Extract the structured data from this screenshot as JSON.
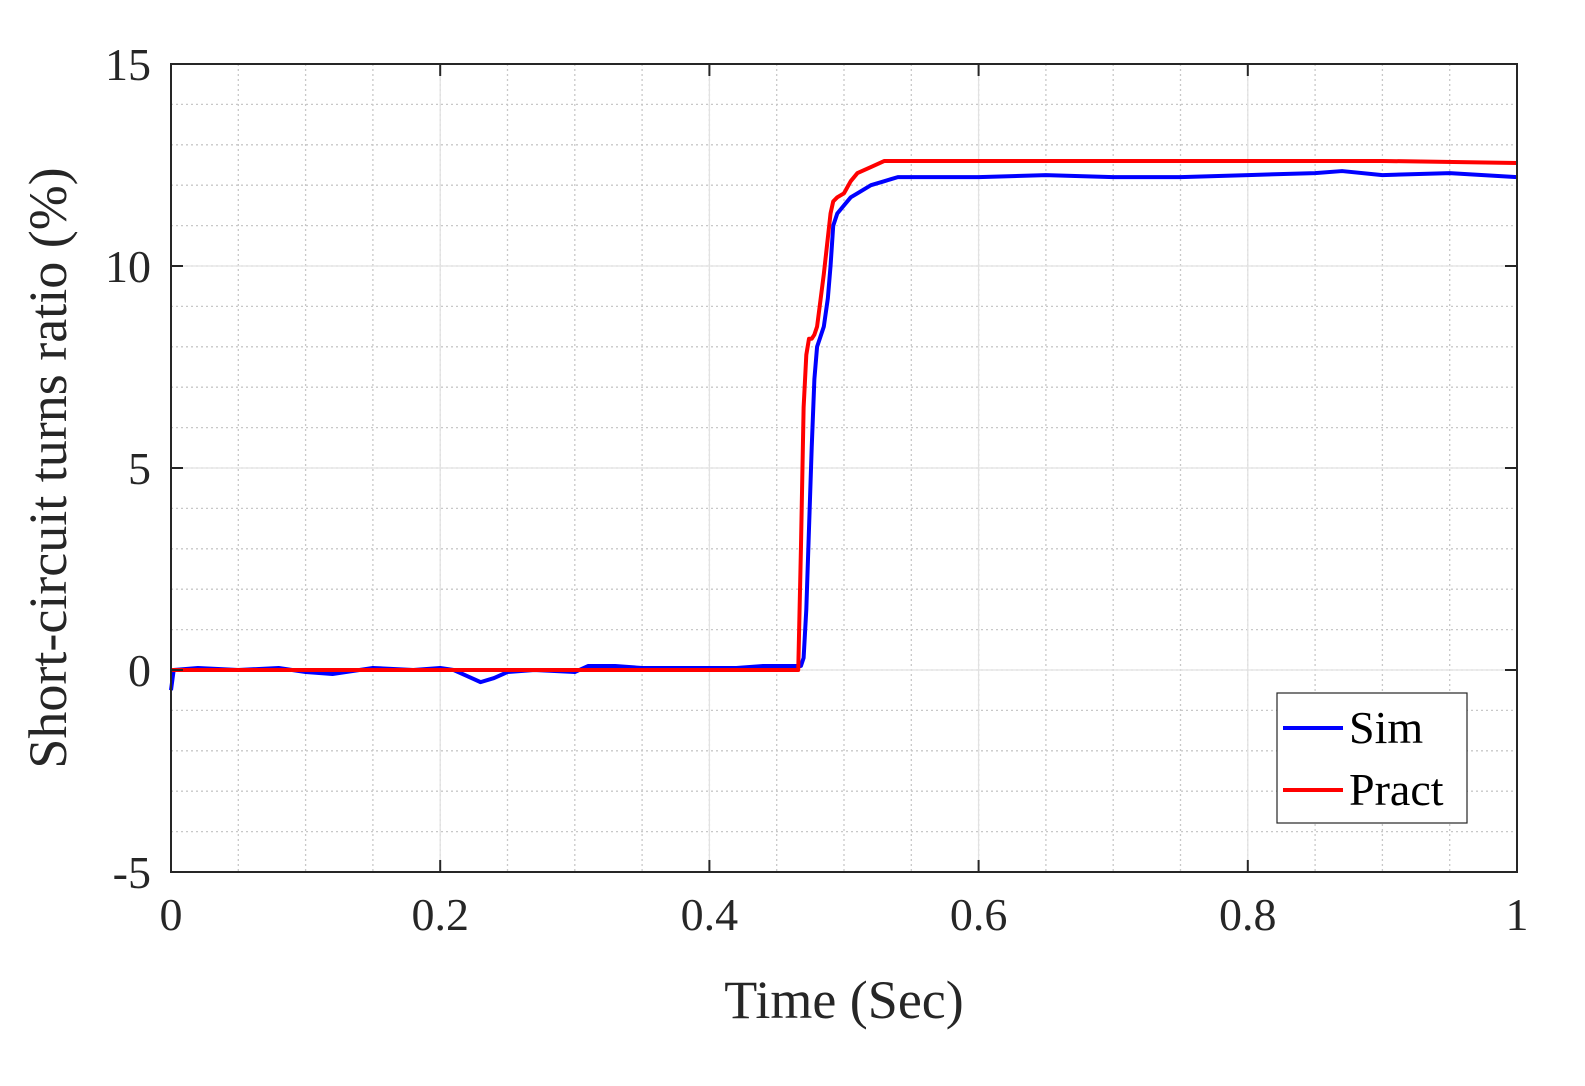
{
  "chart_data": {
    "type": "line",
    "title": "",
    "xlabel": "Time (Sec)",
    "ylabel": "Short-circuit turns ratio (%)",
    "xlim": [
      0,
      1
    ],
    "ylim": [
      -5,
      15
    ],
    "xticks": [
      0,
      0.2,
      0.4,
      0.6,
      0.8,
      1
    ],
    "xtick_labels": [
      "0",
      "0.2",
      "0.4",
      "0.6",
      "0.8",
      "1"
    ],
    "yticks": [
      -5,
      0,
      5,
      10,
      15
    ],
    "ytick_labels": [
      "-5",
      "0",
      "5",
      "10",
      "15"
    ],
    "grid": true,
    "minor_grid": true,
    "legend_position": "bottom-right",
    "series": [
      {
        "name": "Sim",
        "color": "#0000ff",
        "x": [
          0,
          0.002,
          0.02,
          0.05,
          0.08,
          0.1,
          0.12,
          0.15,
          0.18,
          0.2,
          0.21,
          0.22,
          0.23,
          0.24,
          0.25,
          0.27,
          0.3,
          0.31,
          0.33,
          0.35,
          0.38,
          0.4,
          0.42,
          0.44,
          0.46,
          0.468,
          0.47,
          0.472,
          0.474,
          0.476,
          0.478,
          0.48,
          0.482,
          0.485,
          0.488,
          0.49,
          0.492,
          0.495,
          0.5,
          0.505,
          0.51,
          0.52,
          0.53,
          0.54,
          0.55,
          0.6,
          0.65,
          0.7,
          0.75,
          0.8,
          0.85,
          0.87,
          0.9,
          0.95,
          1
        ],
        "y": [
          -0.5,
          0,
          0.05,
          0,
          0.05,
          -0.05,
          -0.1,
          0.05,
          0,
          0.05,
          0,
          -0.15,
          -0.3,
          -0.2,
          -0.05,
          0,
          -0.05,
          0.1,
          0.1,
          0.05,
          0.05,
          0.05,
          0.05,
          0.1,
          0.1,
          0.1,
          0.3,
          1.5,
          3.5,
          5.5,
          7.2,
          8.0,
          8.2,
          8.5,
          9.2,
          10.0,
          11.0,
          11.3,
          11.5,
          11.7,
          11.8,
          12.0,
          12.1,
          12.2,
          12.2,
          12.2,
          12.25,
          12.2,
          12.2,
          12.25,
          12.3,
          12.35,
          12.25,
          12.3,
          12.2
        ]
      },
      {
        "name": "Pract",
        "color": "#ff0000",
        "x": [
          0,
          0.1,
          0.2,
          0.3,
          0.4,
          0.46,
          0.466,
          0.468,
          0.47,
          0.472,
          0.474,
          0.476,
          0.478,
          0.48,
          0.485,
          0.49,
          0.492,
          0.495,
          0.5,
          0.505,
          0.51,
          0.52,
          0.53,
          0.54,
          0.55,
          0.6,
          0.7,
          0.8,
          0.9,
          1
        ],
        "y": [
          0,
          0,
          0,
          0,
          0,
          0,
          0,
          3,
          6.5,
          7.8,
          8.2,
          8.2,
          8.3,
          8.5,
          9.8,
          11.3,
          11.6,
          11.7,
          11.8,
          12.1,
          12.3,
          12.45,
          12.6,
          12.6,
          12.6,
          12.6,
          12.6,
          12.6,
          12.6,
          12.55
        ]
      }
    ]
  }
}
